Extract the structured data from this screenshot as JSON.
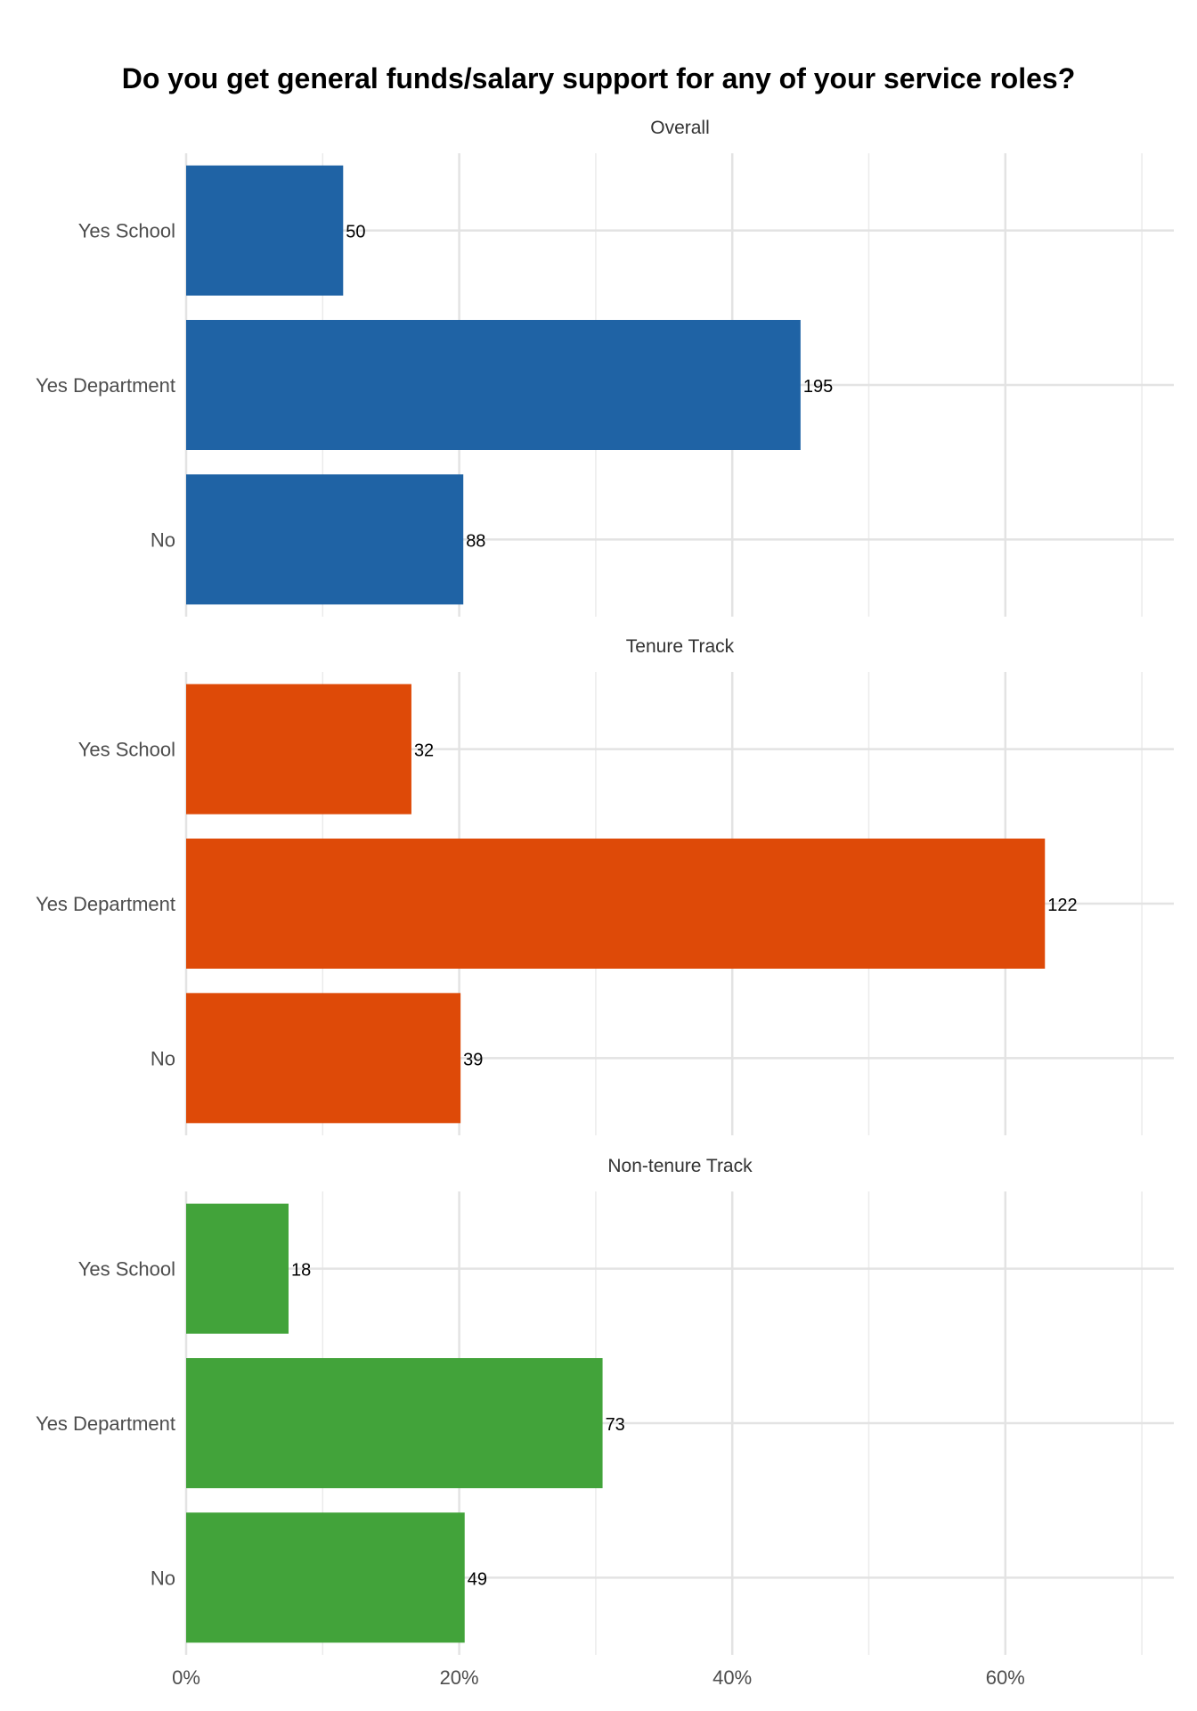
{
  "chart_data": {
    "type": "bar",
    "orientation": "horizontal",
    "title": "Do you get general funds/salary support for any of your service roles?",
    "categories": [
      "Yes School",
      "Yes Department",
      "No"
    ],
    "xlim": [
      0,
      72
    ],
    "xticks": [
      0,
      20,
      40,
      60
    ],
    "xtick_labels": [
      "0%",
      "20%",
      "40%",
      "60%"
    ],
    "grid": true,
    "facets": [
      {
        "name": "Overall",
        "color": "#1f63a5",
        "percentages": [
          11.5,
          45,
          20.3
        ],
        "counts": [
          50,
          195,
          88
        ],
        "count_labels": [
          "50",
          "195",
          "88"
        ]
      },
      {
        "name": "Tenure Track",
        "color": "#de4a08",
        "percentages": [
          16.5,
          62.9,
          20.1
        ],
        "counts": [
          32,
          122,
          39
        ],
        "count_labels": [
          "32",
          "122",
          "39"
        ]
      },
      {
        "name": "Non-tenure Track",
        "color": "#42a33a",
        "percentages": [
          7.5,
          30.5,
          20.4
        ],
        "counts": [
          18,
          73,
          49
        ],
        "count_labels": [
          "18",
          "73",
          "49"
        ]
      }
    ]
  }
}
